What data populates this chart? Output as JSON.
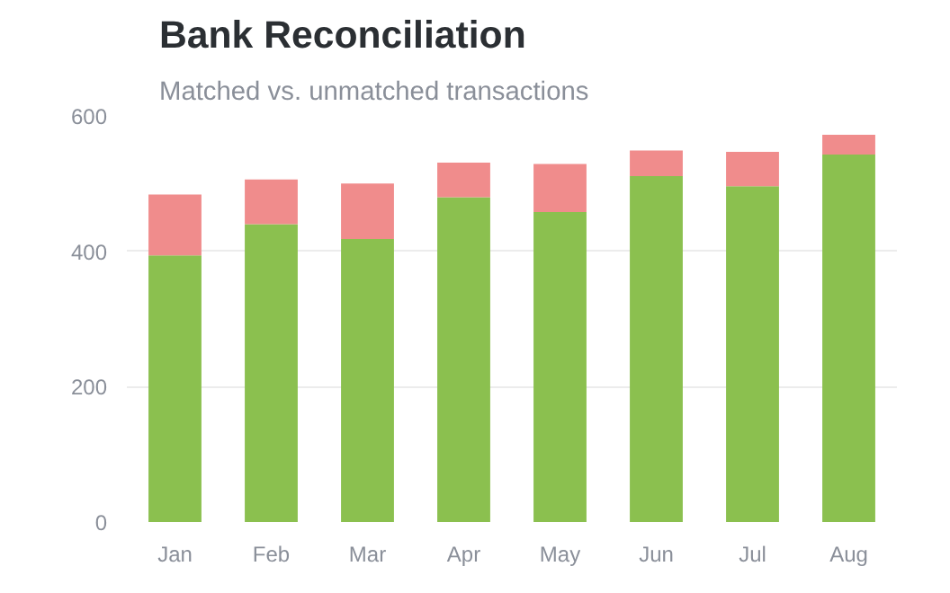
{
  "chart_data": {
    "type": "bar",
    "title": "Bank Reconciliation",
    "subtitle": "Matched vs. unmatched transactions",
    "categories": [
      "Jan",
      "Feb",
      "Mar",
      "Apr",
      "May",
      "Jun",
      "Jul",
      "Aug"
    ],
    "stacked": true,
    "series": [
      {
        "color": "#8bc04f",
        "values": [
          394,
          440,
          418,
          480,
          458,
          511,
          496,
          543
        ]
      },
      {
        "color": "#f08c8c",
        "values": [
          90,
          66,
          82,
          51,
          71,
          38,
          51,
          29
        ]
      }
    ],
    "ylim": [
      0,
      600
    ],
    "yticks": [
      0,
      200,
      400,
      600
    ],
    "grid": "y"
  }
}
